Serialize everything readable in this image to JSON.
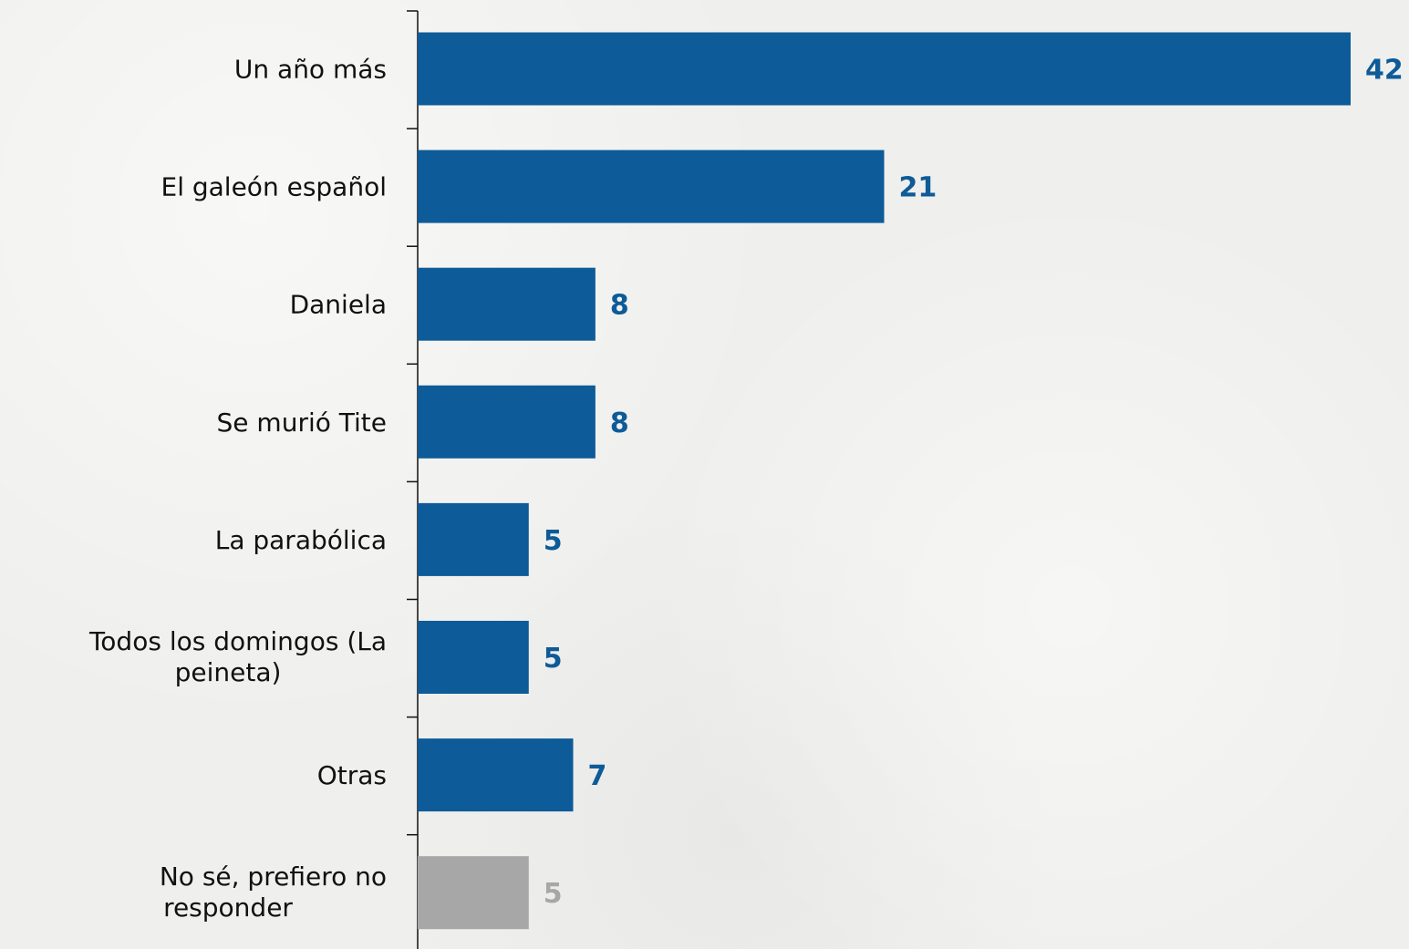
{
  "chart_data": {
    "type": "bar",
    "orientation": "horizontal",
    "categories": [
      "Un año más",
      "El galeón español",
      "Daniela",
      "Se murió Tite",
      "La parabólica",
      "Todos los domingos (La peineta)",
      "Otras",
      "No sé, prefiero no responder"
    ],
    "values": [
      42,
      21,
      8,
      8,
      5,
      5,
      7,
      5
    ],
    "value_labels": [
      "42",
      "21",
      "8",
      "8",
      "5",
      "5",
      "7",
      "5"
    ],
    "bar_colors": [
      "#0d5b98",
      "#0d5b98",
      "#0d5b98",
      "#0d5b98",
      "#0d5b98",
      "#0d5b98",
      "#0d5b98",
      "#a7a7a7"
    ],
    "label_colors": [
      "#0d5b98",
      "#0d5b98",
      "#0d5b98",
      "#0d5b98",
      "#0d5b98",
      "#0d5b98",
      "#0d5b98",
      "#a7a7a7"
    ],
    "title": "",
    "xlabel": "",
    "ylabel": "",
    "xlim": [
      0,
      42
    ],
    "grid": false
  }
}
